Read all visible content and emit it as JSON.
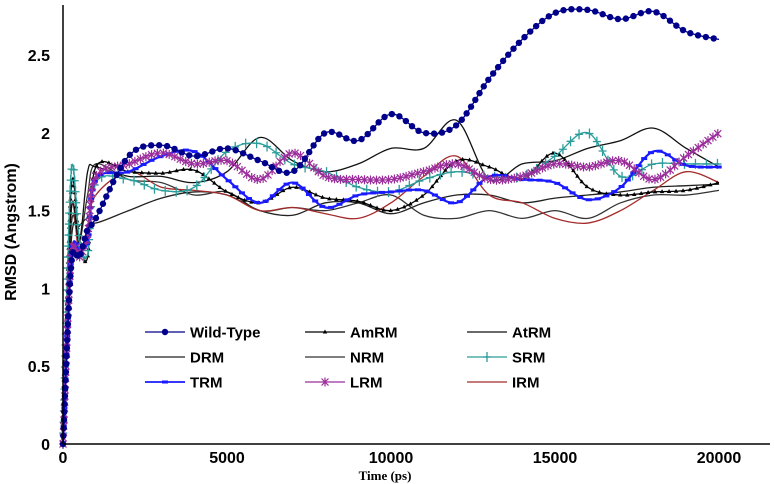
{
  "chart_data": {
    "type": "line",
    "title": "",
    "xlabel": "Time (ps)",
    "ylabel": "RMSD (Angstrom)",
    "xlim": [
      0,
      20000
    ],
    "ylim": [
      0,
      2.8
    ],
    "xticks": [
      "0",
      "5000",
      "10000",
      "15000",
      "20000"
    ],
    "xtick_values": [
      0,
      5000,
      10000,
      15000,
      20000
    ],
    "yticks": [
      "0",
      "0.5",
      "1",
      "1.5",
      "2",
      "2.5"
    ],
    "ytick_values": [
      0,
      0.5,
      1,
      1.5,
      2,
      2.5
    ],
    "grid": false,
    "legend_position": "bottom-center",
    "x": [
      0,
      250,
      500,
      750,
      1000,
      2000,
      3000,
      4000,
      5000,
      6000,
      7000,
      8000,
      9000,
      10000,
      11000,
      12000,
      13000,
      14000,
      15000,
      16000,
      17000,
      18000,
      19000,
      20000
    ],
    "series": [
      {
        "name": "Wild-Type",
        "color": "#00008b",
        "marker": "circle",
        "values": [
          0,
          1.15,
          1.2,
          1.38,
          1.45,
          1.85,
          1.92,
          1.85,
          1.9,
          1.82,
          1.75,
          2.0,
          1.95,
          2.12,
          2.0,
          2.05,
          2.35,
          2.6,
          2.77,
          2.79,
          2.73,
          2.78,
          2.65,
          2.6
        ]
      },
      {
        "name": "AmRM",
        "color": "#000000",
        "marker": "triangle",
        "values": [
          0,
          1.65,
          1.3,
          1.2,
          1.78,
          1.75,
          1.74,
          1.76,
          1.62,
          1.55,
          1.65,
          1.58,
          1.56,
          1.5,
          1.6,
          1.82,
          1.78,
          1.7,
          1.87,
          1.65,
          1.6,
          1.62,
          1.63,
          1.68
        ]
      },
      {
        "name": "AtRM",
        "color": "#111111",
        "marker": "none",
        "values": [
          0,
          1.5,
          1.3,
          1.75,
          1.78,
          1.72,
          1.72,
          1.68,
          1.75,
          1.97,
          1.82,
          1.75,
          1.8,
          1.9,
          1.9,
          2.08,
          1.7,
          1.8,
          1.82,
          1.9,
          1.95,
          2.03,
          1.9,
          1.78
        ]
      },
      {
        "name": "DRM",
        "color": "#222222",
        "marker": "none",
        "values": [
          0,
          1.3,
          1.4,
          1.45,
          1.42,
          1.5,
          1.58,
          1.62,
          1.6,
          1.5,
          1.47,
          1.55,
          1.55,
          1.48,
          1.55,
          1.6,
          1.6,
          1.55,
          1.58,
          1.6,
          1.62,
          1.65,
          1.66,
          1.67
        ]
      },
      {
        "name": "NRM",
        "color": "#333333",
        "marker": "none",
        "values": [
          0,
          1.4,
          1.3,
          1.6,
          1.8,
          1.7,
          1.68,
          1.6,
          1.62,
          1.5,
          1.52,
          1.5,
          1.55,
          1.6,
          1.47,
          1.45,
          1.5,
          1.45,
          1.5,
          1.45,
          1.55,
          1.6,
          1.6,
          1.63
        ]
      },
      {
        "name": "SRM",
        "color": "#2a9d9a",
        "marker": "plus",
        "values": [
          0,
          1.75,
          1.3,
          1.22,
          1.68,
          1.7,
          1.63,
          1.65,
          1.88,
          1.93,
          1.8,
          1.75,
          1.65,
          1.62,
          1.7,
          1.75,
          1.72,
          1.72,
          1.85,
          2.0,
          1.72,
          1.8,
          1.8,
          1.8
        ]
      },
      {
        "name": "TRM",
        "color": "#1a1aff",
        "marker": "dash",
        "values": [
          0,
          1.2,
          1.25,
          1.3,
          1.7,
          1.75,
          1.85,
          1.88,
          1.7,
          1.55,
          1.68,
          1.52,
          1.6,
          1.62,
          1.63,
          1.55,
          1.72,
          1.7,
          1.68,
          1.57,
          1.65,
          1.88,
          1.79,
          1.78
        ]
      },
      {
        "name": "LRM",
        "color": "#9b2d9b",
        "marker": "star",
        "values": [
          0,
          1.2,
          1.2,
          1.35,
          1.72,
          1.8,
          1.87,
          1.8,
          1.82,
          1.7,
          1.87,
          1.72,
          1.7,
          1.7,
          1.75,
          1.8,
          1.7,
          1.72,
          1.8,
          1.78,
          1.82,
          1.7,
          1.85,
          2.0
        ]
      },
      {
        "name": "IRM",
        "color": "#a52a2a",
        "marker": "none",
        "values": [
          0,
          1.5,
          1.2,
          1.4,
          1.6,
          1.75,
          1.65,
          1.63,
          1.6,
          1.5,
          1.52,
          1.48,
          1.45,
          1.55,
          1.72,
          1.85,
          1.6,
          1.55,
          1.45,
          1.42,
          1.5,
          1.63,
          1.75,
          1.68
        ]
      }
    ]
  }
}
